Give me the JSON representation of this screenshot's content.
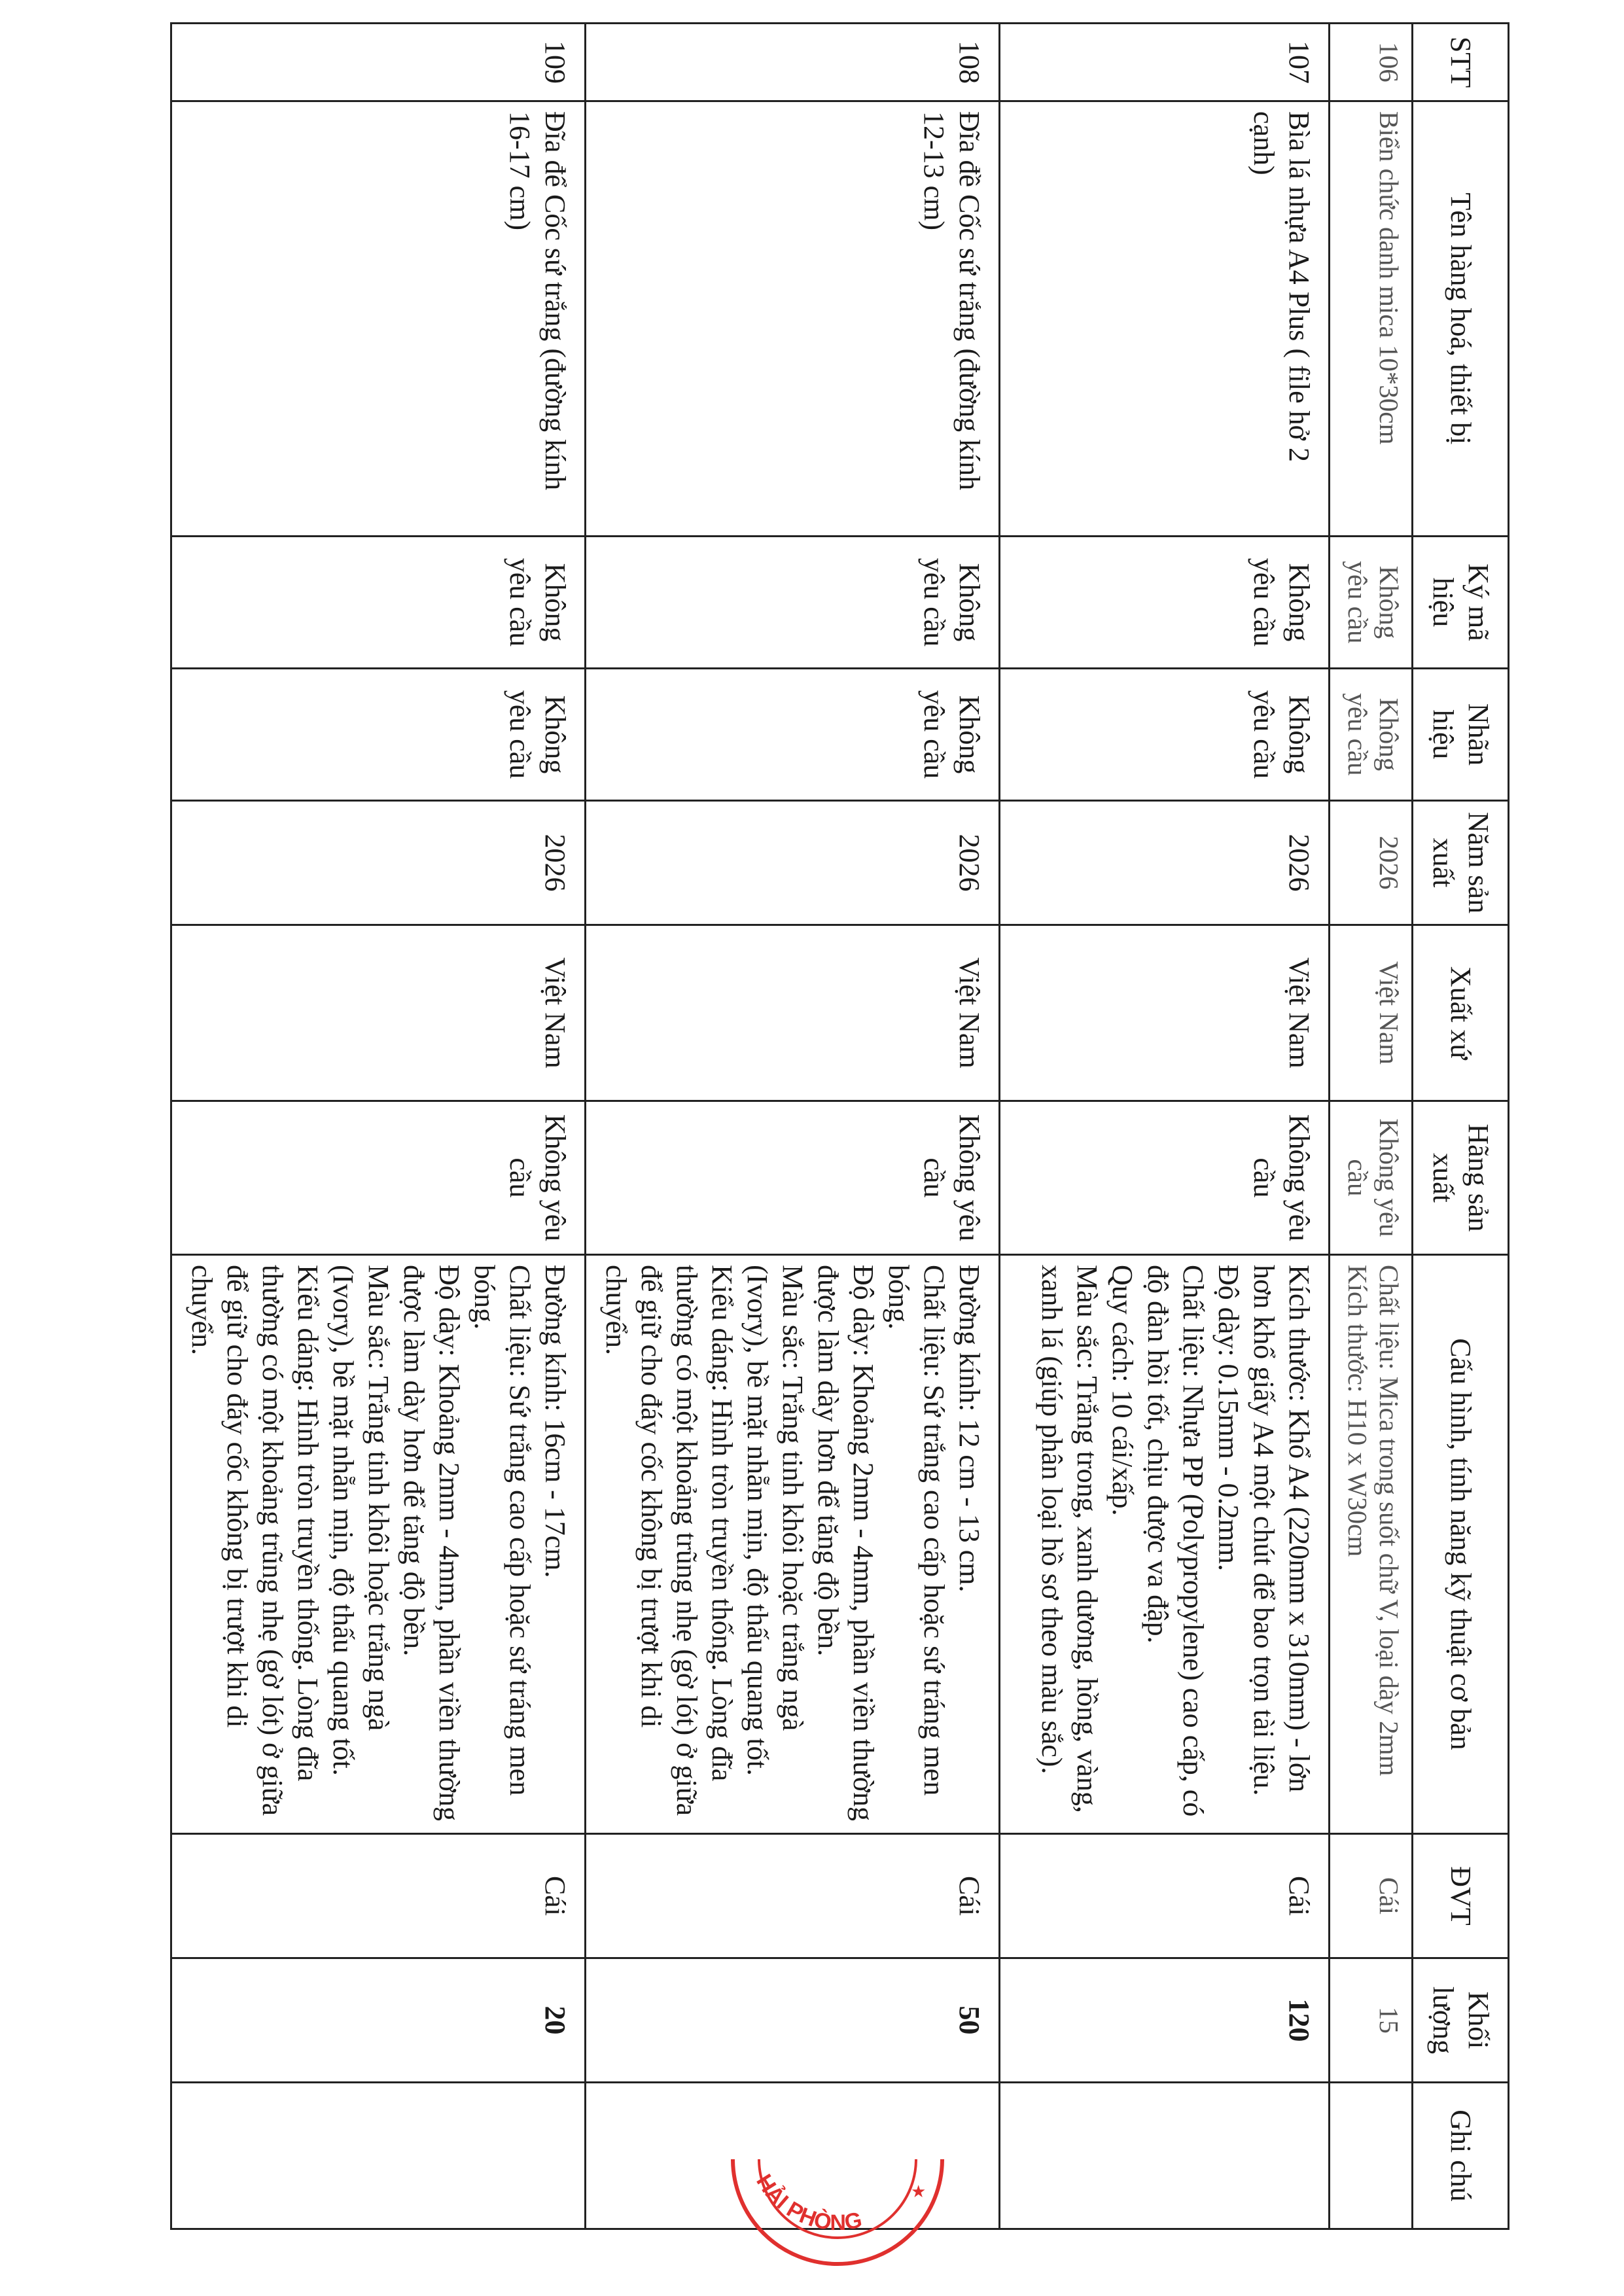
{
  "table": {
    "headers": [
      "STT",
      "Tên hàng hoá, thiết bị",
      "Ký mã hiệu",
      "Nhãn hiệu",
      "Năm sản xuất",
      "Xuất xứ",
      "Hãng sản xuất",
      "Cấu hình, tính năng kỹ thuật cơ bản",
      "ĐVT",
      "Khối lượng",
      "Ghi chú"
    ],
    "rows": [
      {
        "stt": "106",
        "name": "Biển chức danh mica 10*30cm",
        "model": "Không yêu cầu",
        "brand": "Không yêu cầu",
        "year": "2026",
        "origin": "Việt Nam",
        "maker": "Không yêu cầu",
        "spec": "Chất liệu: Mica trong suốt chữ V, loại dày 2mm\nKích thước: H10 x W30cm",
        "unit": "Cái",
        "qty": "15",
        "note": ""
      },
      {
        "stt": "107",
        "name": "Bìa lá nhựa A4 Plus ( file hở 2 cạnh)",
        "model": "Không yêu cầu",
        "brand": "Không yêu cầu",
        "year": "2026",
        "origin": "Việt Nam",
        "maker": "Không yêu cầu",
        "spec": "Kích thước: Khổ A4 (220mm x 310mm) - lớn hơn khổ giấy A4 một chút để bao trọn tài liệu.\nĐộ dày: 0.15mm - 0.2mm.\nChất liệu: Nhựa PP (Polypropylene) cao cấp, có độ đàn hồi tốt, chịu được va đập.\nQuy cách: 10 cái/xấp.\nMàu sắc: Trắng trong, xanh dương, hồng, vàng, xanh lá (giúp phân loại hồ sơ theo màu sắc).",
        "unit": "Cái",
        "qty": "120",
        "note": ""
      },
      {
        "stt": "108",
        "name": "Đĩa đề Cốc sứ trắng (đường kính 12-13 cm)",
        "model": "Không yêu cầu",
        "brand": "Không yêu cầu",
        "year": "2026",
        "origin": "Việt Nam",
        "maker": "Không yêu cầu",
        "spec": "Đường kính: 12 cm - 13 cm.\nChất liệu: Sứ trắng cao cấp hoặc sứ tráng men bóng.\nĐộ dày: Khoảng 2mm - 4mm, phần viền thường được làm dày hơn để tăng độ bền.\nMàu sắc: Trắng tinh khôi hoặc trắng ngà (Ivory), bề mặt nhẵn mịn, độ thấu quang tốt.\nKiểu dáng: Hình tròn truyền thống. Lòng đĩa thường có một khoảng trũng nhẹ (gờ lót) ở giữa để giữ cho đáy cốc không bị trượt khi di chuyển.",
        "unit": "Cái",
        "qty": "50",
        "note": ""
      },
      {
        "stt": "109",
        "name": "Đĩa để Cốc sứ trắng (đường kính 16-17 cm)",
        "model": "Không yêu cầu",
        "brand": "Không yêu cầu",
        "year": "2026",
        "origin": "Việt Nam",
        "maker": "Không yêu cầu",
        "spec": "Đường kính: 16cm - 17cm.\nChất liệu: Sứ trắng cao cấp hoặc sứ tráng men bóng.\nĐộ dày: Khoảng 2mm - 4mm, phần viền thường được làm dày hơn để tăng độ bền.\nMàu sắc: Trắng tinh khôi hoặc trắng ngà (Ivory), bề mặt nhẵn mịn, độ thấu quang tốt.\nKiểu dáng: Hình tròn truyền thống. Lòng đĩa thường có một khoảng trũng nhẹ (gờ lót) ở giữa để giữ cho đáy cốc không bị trượt khi di chuyển.",
        "unit": "Cái",
        "qty": "20",
        "note": ""
      }
    ]
  },
  "stamp": {
    "text": "HẢI PHÒNG",
    "color": "#e0302e"
  }
}
